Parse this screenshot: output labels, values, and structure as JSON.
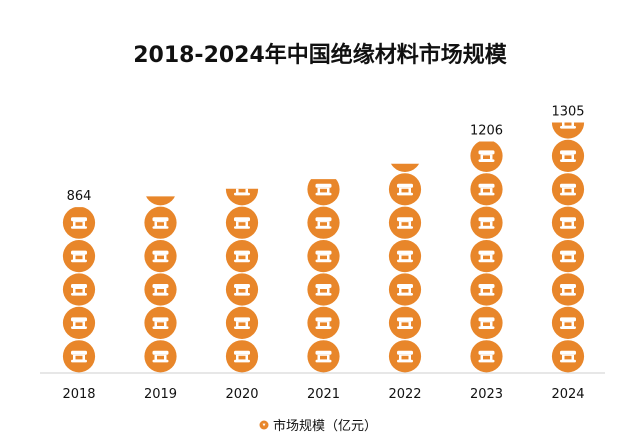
{
  "chart_data": {
    "type": "bar",
    "title": "2018-2024年中国绝缘材料市场规模",
    "categories": [
      "2018",
      "2019",
      "2020",
      "2021",
      "2022",
      "2023",
      "2024"
    ],
    "series": [
      {
        "name": "市场规模（亿元）",
        "values": [
          864,
          920,
          960,
          1010,
          1090,
          1206,
          1305
        ]
      }
    ],
    "data_labels": [
      "864",
      "",
      "",
      "",
      "",
      "1206",
      "1305"
    ],
    "ylim": [
      0,
      1400
    ],
    "grid": false,
    "legend_position": "bottom-center",
    "colors": {
      "icon_fill": "#E8862A",
      "icon_glyph": "#ffffff",
      "legend_marker": "#E8862A",
      "axis": "#cfcfcf",
      "text": "#111111"
    }
  }
}
